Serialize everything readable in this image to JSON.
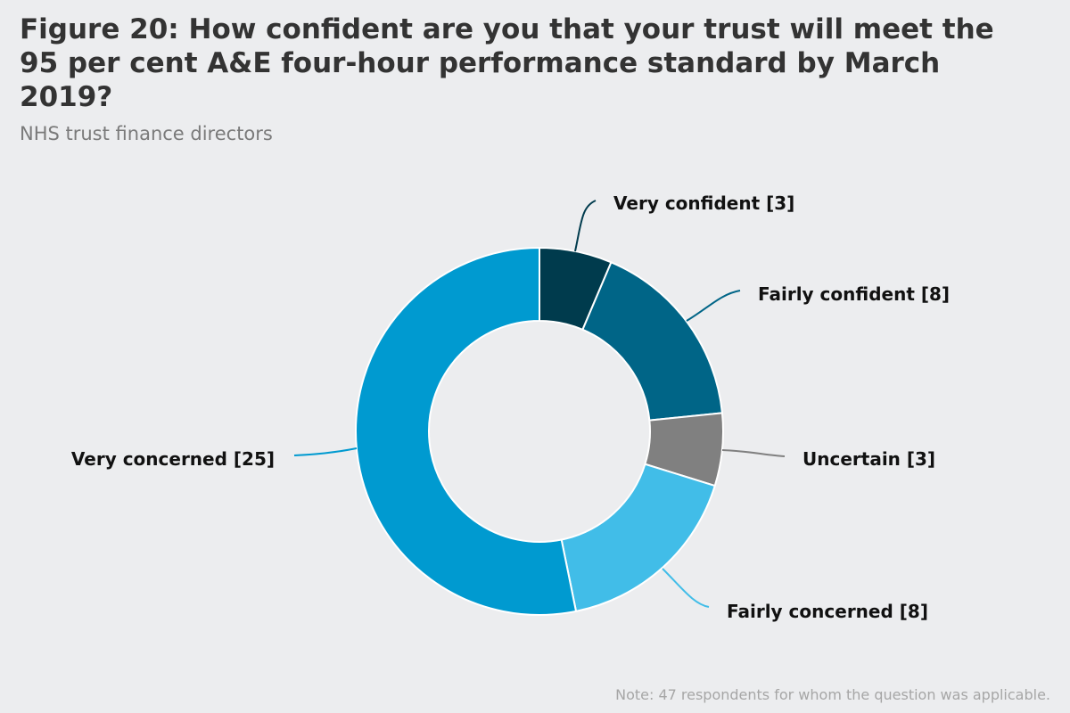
{
  "title": "Figure 20: How confident are you that your trust will meet the 95 per cent A&E four-hour performance standard by March 2019?",
  "subtitle": "NHS trust finance directors",
  "note": "Note: 47 respondents for whom the question was applicable.",
  "chart_data": {
    "type": "pie",
    "variant": "donut",
    "title": "Figure 20: How confident are you that your trust will meet the 95 per cent A&E four-hour performance standard by March 2019?",
    "subtitle": "NHS trust finance directors",
    "categories": [
      "Very confident",
      "Fairly confident",
      "Uncertain",
      "Fairly concerned",
      "Very concerned"
    ],
    "values": [
      3,
      8,
      3,
      8,
      25
    ],
    "labels": [
      "Very confident [3]",
      "Fairly confident [8]",
      "Uncertain [3]",
      "Fairly concerned [8]",
      "Very concerned [25]"
    ],
    "colors": [
      "#003b4d",
      "#006587",
      "#808080",
      "#41bde8",
      "#009ad0"
    ],
    "total_respondents": 47
  }
}
